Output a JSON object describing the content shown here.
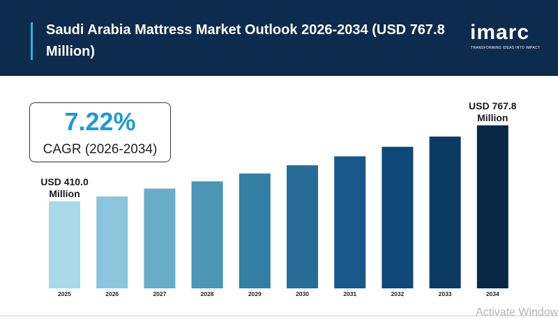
{
  "header": {
    "title": "Saudi Arabia Mattress Market Outlook 2026-2034 (USD 767.8 Million)",
    "brand": "imarc",
    "tagline": "TRANSFORMING IDEAS INTO IMPACT"
  },
  "cagr": {
    "value": "7.22%",
    "label": "CAGR (2026-2034)"
  },
  "watermark": "Activate Windows",
  "chart_data": {
    "type": "bar",
    "categories": [
      "2025",
      "2026",
      "2027",
      "2028",
      "2029",
      "2030",
      "2031",
      "2032",
      "2033",
      "2034"
    ],
    "values": [
      410.0,
      433,
      470,
      504,
      541,
      580,
      622,
      667,
      715,
      767.8
    ],
    "annotations": [
      {
        "category": "2025",
        "text": [
          "USD 410.0",
          "Million"
        ]
      },
      {
        "category": "2034",
        "text": [
          "USD 767.8",
          "Million"
        ]
      }
    ],
    "colors": [
      "#a9d8ea",
      "#8cc5de",
      "#6aadc9",
      "#4b95b5",
      "#337ea5",
      "#276c98",
      "#18588a",
      "#0d4878",
      "#0b3a63",
      "#082848"
    ],
    "accent": "#1e9ad6",
    "header_color": "#0d2c4d"
  }
}
